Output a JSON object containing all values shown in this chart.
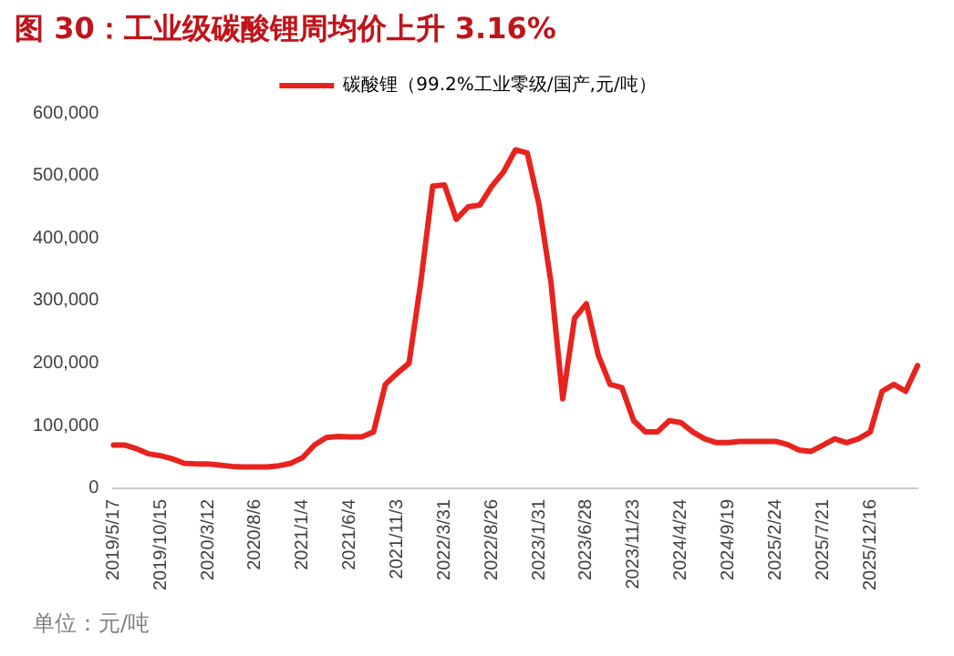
{
  "chart_data": {
    "type": "line",
    "title": "图 30：工业级碳酸锂周均价上升 3.16%",
    "categories": [
      "2019/5/17",
      null,
      null,
      null,
      "2019/10/15",
      null,
      null,
      null,
      "2020/3/12",
      null,
      null,
      null,
      "2020/8/6",
      null,
      null,
      null,
      "2021/1/4",
      null,
      null,
      null,
      "2021/6/4",
      null,
      null,
      null,
      "2021/11/3",
      null,
      null,
      null,
      "2022/3/31",
      null,
      null,
      null,
      "2022/8/26",
      null,
      null,
      null,
      "2023/1/31",
      null,
      null,
      null,
      "2023/6/28",
      null,
      null,
      null,
      "2023/11/23",
      null,
      null,
      null,
      "2024/4/24",
      null,
      null,
      null,
      "2024/9/19",
      null,
      null,
      null,
      "2025/2/24",
      null,
      null,
      null,
      "2025/7/21",
      null,
      null,
      null,
      "2025/12/16",
      null,
      null,
      null,
      null
    ],
    "series": [
      {
        "name": "碳酸锂（99.2%工业零级/国产,元/吨）",
        "color": "#e8231e",
        "values": [
          69000,
          69000,
          63000,
          55000,
          52000,
          47000,
          40000,
          39000,
          39000,
          37000,
          35000,
          34000,
          34000,
          34000,
          36000,
          40000,
          49000,
          69000,
          81000,
          83000,
          82000,
          82000,
          90000,
          166000,
          184000,
          200000,
          330000,
          483000,
          485000,
          430000,
          450000,
          453000,
          483000,
          506000,
          541000,
          536000,
          453000,
          330000,
          143000,
          272000,
          295000,
          213000,
          166000,
          161000,
          108000,
          90000,
          90000,
          108000,
          105000,
          90000,
          79000,
          73000,
          73000,
          75000,
          75000,
          75000,
          75000,
          70000,
          61000,
          59000,
          69000,
          79000,
          73000,
          79000,
          90000,
          155000,
          166000,
          155000,
          196000
        ]
      }
    ],
    "ylim": [
      0,
      600000
    ],
    "yticks": [
      {
        "value": 0,
        "label": "0"
      },
      {
        "value": 100000,
        "label": "100,000"
      },
      {
        "value": 200000,
        "label": "200,000"
      },
      {
        "value": 300000,
        "label": "300,000"
      },
      {
        "value": 400000,
        "label": "400,000"
      },
      {
        "value": 500000,
        "label": "500,000"
      },
      {
        "value": 600000,
        "label": "600,000"
      }
    ],
    "grid": false,
    "legend": "top",
    "marker": "none",
    "line_style": "solid",
    "annotations": [
      "单位：元/吨"
    ]
  }
}
